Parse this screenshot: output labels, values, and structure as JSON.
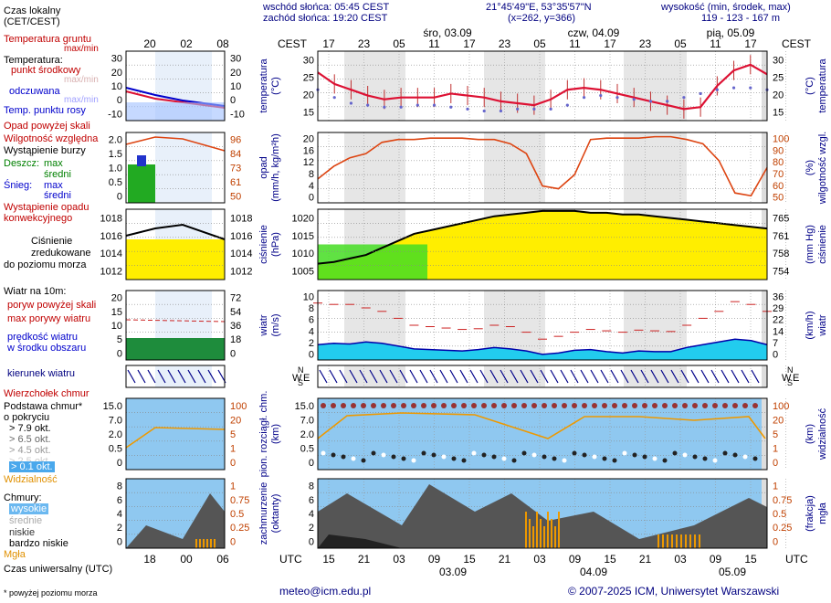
{
  "header": {
    "sunrise": "wschód słońca: 05:45 CEST",
    "sunset": "zachód słońca: 19:20 CEST",
    "coords": "21°45'49\"E, 53°35'57\"N",
    "grid": "(x=262, y=366)",
    "elev_label": "wysokość (min, środek, max)",
    "elev_values": "119 - 123 - 167 m",
    "days": [
      "śro, 03.09",
      "czw, 04.09",
      "pią, 05.09"
    ],
    "local_tz": "CEST",
    "local_hours": [
      "17",
      "23",
      "05",
      "11",
      "17",
      "23",
      "05",
      "11",
      "17",
      "23",
      "05",
      "11",
      "17"
    ],
    "utc_tz": "UTC",
    "utc_hours": [
      "15",
      "21",
      "03",
      "09",
      "15",
      "21",
      "03",
      "09",
      "15",
      "21",
      "03",
      "09",
      "15"
    ],
    "utc_dates": [
      "03.09",
      "04.09",
      "05.09"
    ]
  },
  "legend": {
    "local_time": "Czas lokalny",
    "local_time_sub": "(CET/CEST)",
    "local_ticks": [
      "20",
      "02",
      "08"
    ],
    "utc_ticks": [
      "18",
      "00",
      "06"
    ],
    "utc_label": "Czas uniwersalny (UTC)",
    "temp": {
      "ground": "Temperatura gruntu",
      "ground_sub": "max/min",
      "title": "Temperatura:",
      "mid": "punkt środkowy",
      "maxmin": "max/min",
      "felt": "odczuwana",
      "felt_sub": "max/min",
      "dew": "Temp. punktu rosy",
      "ticks_l": [
        "30",
        "20",
        "10",
        "0",
        "-10"
      ],
      "ticks_r": [
        "30",
        "20",
        "10",
        "0",
        "-10"
      ]
    },
    "precip": {
      "overflow": "Opad powyżej skali",
      "humidity": "Wilgotność względna",
      "storm": "Wystąpienie burzy",
      "rain": "Deszcz:",
      "rain_max": "max",
      "rain_mid": "średni",
      "snow": "Śnieg:",
      "snow_max": "max",
      "snow_mid": "średni",
      "occurrence": "Wystąpienie opadu",
      "occurrence2": "konwekcyjnego",
      "ticks_l": [
        "2.0",
        "1.5",
        "1.0",
        "0.5",
        "0"
      ],
      "ticks_r": [
        "96",
        "84",
        "73",
        "61",
        "50"
      ]
    },
    "pressure": {
      "l1": "Ciśnienie",
      "l2": "zredukowane",
      "l3": "do poziomu morza",
      "ticks_l": [
        "1018",
        "1016",
        "1014",
        "1012"
      ],
      "ticks_r": [
        "1018",
        "1016",
        "1014",
        "1012"
      ]
    },
    "wind": {
      "title": "Wiatr na 10m:",
      "gust_over": "poryw powyżej skali",
      "gust_max": "max porywy wiatru",
      "speed": "prędkość wiatru",
      "speed2": "w środku obszaru",
      "ticks_l": [
        "20",
        "15",
        "10",
        "5",
        "0"
      ],
      "ticks_r": [
        "72",
        "54",
        "36",
        "18",
        "0"
      ],
      "direction": "kierunek wiatru"
    },
    "clouds": {
      "top": "Wierzchołek chmur",
      "base": "Podstawa chmur*",
      "base2": "o pokryciu",
      "o79": "> 7.9 okt.",
      "o65": "> 6.5 okt.",
      "o45": "> 4.5 okt.",
      "o25": "> 2.5 okt.",
      "o01": "> 0.1 okt.",
      "vis": "Widzialność",
      "ticks_l": [
        "15.0",
        "7.0",
        "2.0",
        "0.5",
        "0"
      ],
      "ticks_r": [
        "100",
        "20",
        "5",
        "1",
        "0"
      ]
    },
    "cover": {
      "title": "Chmury:",
      "high": "wysokie",
      "mid": "średnie",
      "low": "niskie",
      "vlow": "bardzo niskie",
      "fog": "Mgła",
      "ticks_l": [
        "8",
        "6",
        "4",
        "2",
        "0"
      ],
      "ticks_r": [
        "1",
        "0.75",
        "0.5",
        "0.25",
        "0"
      ]
    }
  },
  "axes": {
    "temp": {
      "ylabel": "temperatura",
      "unit": "(°C)",
      "ticks": [
        "30",
        "25",
        "20",
        "15"
      ]
    },
    "precip": {
      "ylabel": "opad",
      "unit": "(mm/h, kg/m²h)",
      "ticks": [
        "20",
        "16",
        "12",
        "8",
        "4",
        "0"
      ],
      "r_label": "wilgotność wzgl.",
      "r_unit": "(%)",
      "r_ticks": [
        "100",
        "90",
        "80",
        "70",
        "60",
        "50"
      ]
    },
    "pressure": {
      "ylabel": "ciśnienie",
      "unit": "(hPa)",
      "ticks": [
        "1020",
        "1015",
        "1010",
        "1005"
      ],
      "r_label": "ciśnienie",
      "r_unit": "(mm Hg)",
      "r_ticks": [
        "765",
        "761",
        "758",
        "754"
      ]
    },
    "wind": {
      "ylabel": "wiatr",
      "unit": "(m/s)",
      "ticks": [
        "10",
        "8",
        "6",
        "4",
        "2",
        "0"
      ],
      "r_label": "wiatr",
      "r_unit": "(km/h)",
      "r_ticks": [
        "36",
        "29",
        "22",
        "14",
        "7",
        "0"
      ]
    },
    "winddir": {
      "n": "N",
      "w": "W",
      "s": "S",
      "e": "E"
    },
    "cloud": {
      "ylabel1": "pion. rozciągł. chm.",
      "ylabel2": "(km)",
      "ticks": [
        "15.0",
        "7.0",
        "2.0",
        "0.5",
        "0"
      ],
      "r_label": "widzialność",
      "r_unit": "(km)",
      "r_ticks": [
        "100",
        "20",
        "5",
        "1",
        "0"
      ]
    },
    "cover": {
      "ylabel1": "zachmurzenie",
      "ylabel2": "(oktanty)",
      "ticks": [
        "8",
        "6",
        "4",
        "2",
        "0"
      ],
      "r_label": "mgła",
      "r_unit": "(frakcja)",
      "r_ticks": [
        "1",
        "0.75",
        "0.5",
        "0.25",
        "0"
      ]
    }
  },
  "footer": {
    "note": "* powyżej poziomu morza",
    "email": "meteo@icm.edu.pl",
    "copyright": "© 2007-2025 ICM, Uniwersytet Warszawski"
  },
  "chart_data": [
    {
      "type": "line",
      "name": "temperature",
      "x_hours_utc": [
        15,
        18,
        21,
        0,
        3,
        6,
        9,
        12,
        15,
        18,
        21,
        0,
        3,
        6,
        9,
        12,
        15,
        18
      ],
      "series": [
        {
          "name": "punkt środkowy",
          "values": [
            24.5,
            21.5,
            20,
            18.5,
            17.5,
            18,
            18,
            18,
            19,
            18.5,
            18,
            17,
            16.5,
            16,
            17.5,
            20,
            20.5,
            20,
            19,
            18,
            17,
            16,
            15,
            15.5,
            21,
            25,
            26.5,
            24
          ]
        },
        {
          "name": "Temp. punktu rosy",
          "values": [
            20,
            18,
            16.5,
            16,
            15.5,
            15.5,
            16,
            16,
            15.5,
            15,
            14.5,
            14.5,
            15,
            15,
            15,
            16,
            18,
            18.5,
            18,
            17.5,
            17,
            17,
            18,
            19,
            20,
            20.5,
            20.5,
            20
          ]
        }
      ],
      "ylim": [
        12,
        30
      ]
    },
    {
      "type": "line",
      "name": "humidity",
      "values": [
        67,
        76,
        82,
        85,
        93,
        95,
        95,
        96,
        96,
        96,
        95,
        95,
        92,
        85,
        62,
        60,
        70,
        95,
        96,
        96,
        96,
        97,
        97,
        95,
        92,
        80,
        57,
        55,
        75
      ],
      "ylim": [
        50,
        100
      ]
    },
    {
      "type": "area",
      "name": "pressure",
      "values": [
        1004.5,
        1005,
        1006,
        1007,
        1009,
        1011,
        1013,
        1014,
        1015,
        1016,
        1017,
        1018,
        1018.5,
        1019,
        1019.5,
        1019.5,
        1019.5,
        1019,
        1019,
        1018.5,
        1018.5,
        1018,
        1017.5,
        1017,
        1016.5,
        1016,
        1015.5,
        1015,
        1014.5
      ],
      "ylim": [
        1000,
        1020
      ]
    },
    {
      "type": "line",
      "name": "wind",
      "series": [
        {
          "name": "prędkość wiatru",
          "values": [
            2.2,
            2.4,
            2.3,
            2.6,
            2.4,
            2,
            1.6,
            1.5,
            1.4,
            1.3,
            1.5,
            1.8,
            1.6,
            1.3,
            0.8,
            1,
            1.4,
            1.5,
            1.2,
            1,
            1.3,
            1.2,
            1.2,
            1.8,
            2.2,
            2.6,
            3,
            2.8,
            2.2
          ]
        },
        {
          "name": "max porywy wiatru",
          "values": [
            8.2,
            8,
            8,
            7.5,
            7,
            6,
            5,
            4.8,
            4.6,
            4.4,
            4.5,
            5,
            4.8,
            4,
            3,
            3.4,
            4,
            4.4,
            4.2,
            4,
            4.3,
            4.2,
            4.1,
            5,
            6,
            7,
            8.4,
            8,
            7
          ]
        }
      ],
      "ylim": [
        0,
        10
      ]
    }
  ]
}
